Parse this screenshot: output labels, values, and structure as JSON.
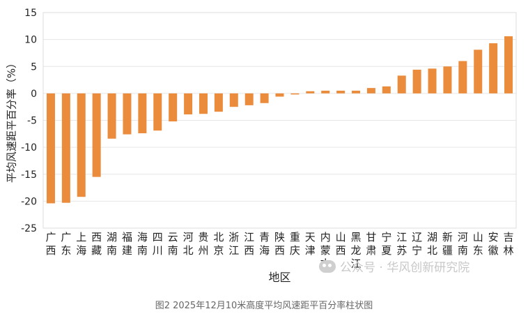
{
  "chart_data": {
    "type": "bar",
    "title": "",
    "xlabel": "地区",
    "ylabel": "平均风速距平百分率（%）",
    "ylim": [
      -25,
      15
    ],
    "yticks": [
      -25,
      -20,
      -15,
      -10,
      -5,
      0,
      5,
      10,
      15
    ],
    "grid": true,
    "bar_color": "#ea8c3c",
    "categories": [
      "广西",
      "广东",
      "上海",
      "西藏",
      "湖南",
      "福建",
      "海南",
      "四川",
      "云南",
      "河北",
      "贵州",
      "北京",
      "浙江",
      "江西",
      "青海",
      "陕西",
      "重庆",
      "天津",
      "内蒙古",
      "山西",
      "黑龙江",
      "甘肃",
      "宁夏",
      "江苏",
      "辽宁",
      "湖北",
      "新疆",
      "河南",
      "山东",
      "安徽",
      "吉林"
    ],
    "values": [
      -20.4,
      -20.3,
      -19.2,
      -15.5,
      -8.4,
      -7.6,
      -7.4,
      -6.9,
      -5.2,
      -3.9,
      -3.8,
      -3.4,
      -2.5,
      -2.2,
      -1.8,
      -0.6,
      -0.2,
      0.4,
      0.5,
      0.5,
      0.5,
      1.0,
      1.3,
      3.3,
      4.4,
      4.6,
      5.0,
      6.0,
      8.1,
      9.3,
      10.6
    ]
  },
  "caption": "图2  2025年12月10米高度平均风速距平百分率柱状图",
  "watermark": {
    "text": "公众号 · 华风创新研究院",
    "icon": "wechat-icon"
  }
}
